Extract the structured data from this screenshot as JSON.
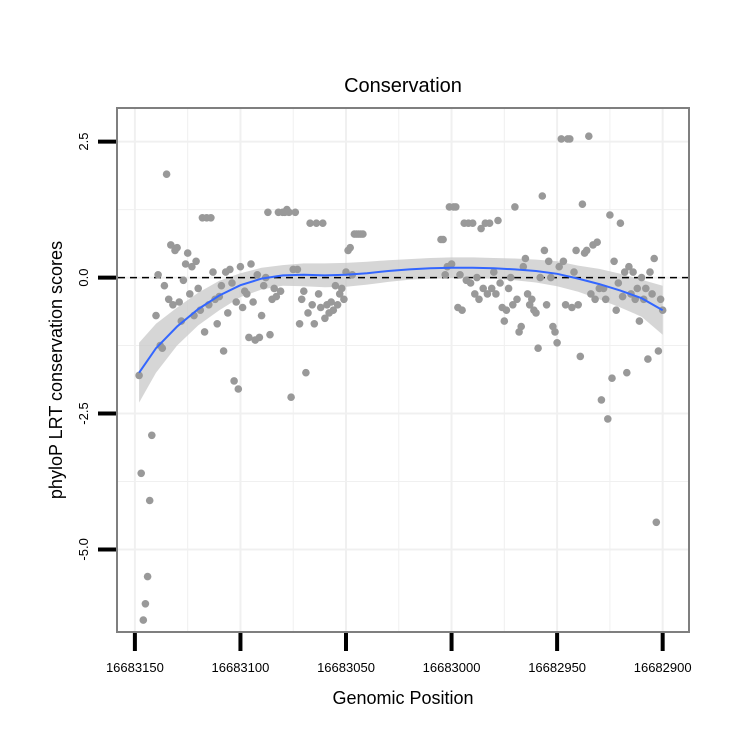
{
  "chart_data": {
    "type": "scatter",
    "title": "Conservation",
    "xlabel": "Genomic Position",
    "ylabel": "phyloP LRT conservation scores",
    "xlim": [
      16683158,
      16682888
    ],
    "ylim": [
      -6.5,
      3.1
    ],
    "x_reversed": true,
    "x_ticks": [
      16683150,
      16683100,
      16683050,
      16683000,
      16682950,
      16682900
    ],
    "x_tick_labels": [
      "16683150",
      "16683100",
      "16683050",
      "16683000",
      "16682950",
      "16682900"
    ],
    "y_ticks": [
      2.5,
      0,
      -2.5,
      -5
    ],
    "y_tick_labels": [
      "2.5",
      "0.0",
      "-2.5",
      "-5.0"
    ],
    "reference_line": {
      "y": 0,
      "style": "dashed"
    },
    "colors": {
      "points": "#999999",
      "smooth": "#3366FF",
      "band": "#C8C8C8",
      "panel_border": "#7F7F7F",
      "grid": "#F0F0F0"
    },
    "points": [
      [
        16683148,
        -1.8
      ],
      [
        16683147,
        -3.6
      ],
      [
        16683146,
        -6.3
      ],
      [
        16683145,
        -6.0
      ],
      [
        16683144,
        -5.5
      ],
      [
        16683143,
        -4.1
      ],
      [
        16683142,
        -2.9
      ],
      [
        16683140,
        -0.7
      ],
      [
        16683139,
        0.05
      ],
      [
        16683138,
        -1.25
      ],
      [
        16683137,
        -1.3
      ],
      [
        16683136,
        -0.15
      ],
      [
        16683135,
        1.9
      ],
      [
        16683134,
        -0.4
      ],
      [
        16683133,
        0.6
      ],
      [
        16683132,
        -0.5
      ],
      [
        16683131,
        0.5
      ],
      [
        16683130,
        0.55
      ],
      [
        16683129,
        -0.45
      ],
      [
        16683128,
        -0.8
      ],
      [
        16683127,
        -0.05
      ],
      [
        16683126,
        0.25
      ],
      [
        16683125,
        0.45
      ],
      [
        16683124,
        -0.3
      ],
      [
        16683123,
        0.2
      ],
      [
        16683122,
        -0.7
      ],
      [
        16683121,
        0.3
      ],
      [
        16683120,
        -0.2
      ],
      [
        16683119,
        -0.6
      ],
      [
        16683118,
        1.1
      ],
      [
        16683117,
        -1.0
      ],
      [
        16683116,
        1.1
      ],
      [
        16683115,
        -0.5
      ],
      [
        16683114,
        1.1
      ],
      [
        16683113,
        0.1
      ],
      [
        16683112,
        -0.4
      ],
      [
        16683111,
        -0.85
      ],
      [
        16683110,
        -0.35
      ],
      [
        16683109,
        -0.15
      ],
      [
        16683108,
        -1.35
      ],
      [
        16683107,
        0.1
      ],
      [
        16683106,
        -0.65
      ],
      [
        16683105,
        0.15
      ],
      [
        16683104,
        -0.1
      ],
      [
        16683103,
        -1.9
      ],
      [
        16683102,
        -0.45
      ],
      [
        16683101,
        -2.05
      ],
      [
        16683100,
        0.2
      ],
      [
        16683099,
        -0.55
      ],
      [
        16683098,
        -0.25
      ],
      [
        16683097,
        -0.3
      ],
      [
        16683096,
        -1.1
      ],
      [
        16683095,
        0.25
      ],
      [
        16683094,
        -0.45
      ],
      [
        16683093,
        -1.15
      ],
      [
        16683092,
        0.05
      ],
      [
        16683091,
        -1.1
      ],
      [
        16683090,
        -0.7
      ],
      [
        16683089,
        -0.15
      ],
      [
        16683088,
        0.0
      ],
      [
        16683087,
        1.2
      ],
      [
        16683086,
        -1.05
      ],
      [
        16683085,
        -0.4
      ],
      [
        16683084,
        -0.2
      ],
      [
        16683083,
        -0.35
      ],
      [
        16683082,
        1.2
      ],
      [
        16683081,
        -0.25
      ],
      [
        16683080,
        1.2
      ],
      [
        16683079,
        1.2
      ],
      [
        16683078,
        1.25
      ],
      [
        16683077,
        1.2
      ],
      [
        16683076,
        -2.2
      ],
      [
        16683075,
        0.15
      ],
      [
        16683074,
        1.2
      ],
      [
        16683073,
        0.15
      ],
      [
        16683072,
        -0.85
      ],
      [
        16683071,
        -0.4
      ],
      [
        16683070,
        -0.25
      ],
      [
        16683069,
        -1.75
      ],
      [
        16683068,
        -0.65
      ],
      [
        16683067,
        1.0
      ],
      [
        16683066,
        -0.5
      ],
      [
        16683065,
        -0.85
      ],
      [
        16683064,
        1.0
      ],
      [
        16683063,
        -0.3
      ],
      [
        16683062,
        -0.55
      ],
      [
        16683061,
        1.0
      ],
      [
        16683060,
        -0.75
      ],
      [
        16683059,
        -0.5
      ],
      [
        16683058,
        -0.65
      ],
      [
        16683057,
        -0.45
      ],
      [
        16683056,
        -0.6
      ],
      [
        16683055,
        -0.15
      ],
      [
        16683054,
        -0.5
      ],
      [
        16683053,
        -0.3
      ],
      [
        16683052,
        -0.2
      ],
      [
        16683051,
        -0.4
      ],
      [
        16683050,
        0.1
      ],
      [
        16683049,
        0.5
      ],
      [
        16683048,
        0.55
      ],
      [
        16683047,
        0.05
      ],
      [
        16683046,
        0.8
      ],
      [
        16683045,
        0.8
      ],
      [
        16683044,
        0.8
      ],
      [
        16683043,
        0.8
      ],
      [
        16683042,
        0.8
      ],
      [
        16683005,
        0.7
      ],
      [
        16683004,
        0.7
      ],
      [
        16683003,
        0.05
      ],
      [
        16683002,
        0.2
      ],
      [
        16683001,
        1.3
      ],
      [
        16683000,
        0.25
      ],
      [
        16682999,
        1.3
      ],
      [
        16682998,
        1.3
      ],
      [
        16682997,
        -0.55
      ],
      [
        16682996,
        0.05
      ],
      [
        16682995,
        -0.6
      ],
      [
        16682994,
        1.0
      ],
      [
        16682993,
        -0.05
      ],
      [
        16682992,
        1.0
      ],
      [
        16682991,
        -0.1
      ],
      [
        16682990,
        1.0
      ],
      [
        16682989,
        -0.3
      ],
      [
        16682988,
        0.0
      ],
      [
        16682987,
        -0.4
      ],
      [
        16682986,
        0.9
      ],
      [
        16682985,
        -0.2
      ],
      [
        16682984,
        1.0
      ],
      [
        16682983,
        -0.3
      ],
      [
        16682982,
        1.0
      ],
      [
        16682981,
        -0.2
      ],
      [
        16682980,
        0.1
      ],
      [
        16682979,
        -0.3
      ],
      [
        16682978,
        1.05
      ],
      [
        16682977,
        -0.1
      ],
      [
        16682976,
        -0.55
      ],
      [
        16682975,
        -0.8
      ],
      [
        16682974,
        -0.6
      ],
      [
        16682973,
        -0.2
      ],
      [
        16682972,
        0.0
      ],
      [
        16682971,
        -0.5
      ],
      [
        16682970,
        1.3
      ],
      [
        16682969,
        -0.4
      ],
      [
        16682968,
        -1.0
      ],
      [
        16682967,
        -0.9
      ],
      [
        16682966,
        0.2
      ],
      [
        16682965,
        0.35
      ],
      [
        16682964,
        -0.3
      ],
      [
        16682963,
        -0.5
      ],
      [
        16682962,
        -0.4
      ],
      [
        16682961,
        -0.6
      ],
      [
        16682960,
        -0.65
      ],
      [
        16682959,
        -1.3
      ],
      [
        16682958,
        0.0
      ],
      [
        16682957,
        1.5
      ],
      [
        16682956,
        0.5
      ],
      [
        16682955,
        -0.5
      ],
      [
        16682954,
        0.3
      ],
      [
        16682953,
        0.0
      ],
      [
        16682952,
        -0.9
      ],
      [
        16682951,
        -1.0
      ],
      [
        16682950,
        -1.2
      ],
      [
        16682949,
        0.2
      ],
      [
        16682948,
        2.55
      ],
      [
        16682947,
        0.3
      ],
      [
        16682946,
        -0.5
      ],
      [
        16682945,
        2.55
      ],
      [
        16682944,
        2.55
      ],
      [
        16682943,
        -0.55
      ],
      [
        16682942,
        0.1
      ],
      [
        16682941,
        0.5
      ],
      [
        16682940,
        -0.5
      ],
      [
        16682939,
        -1.45
      ],
      [
        16682938,
        1.35
      ],
      [
        16682937,
        0.45
      ],
      [
        16682936,
        0.5
      ],
      [
        16682935,
        2.6
      ],
      [
        16682934,
        -0.3
      ],
      [
        16682933,
        0.6
      ],
      [
        16682932,
        -0.4
      ],
      [
        16682931,
        0.65
      ],
      [
        16682930,
        -0.2
      ],
      [
        16682929,
        -2.25
      ],
      [
        16682928,
        -0.2
      ],
      [
        16682927,
        -0.4
      ],
      [
        16682926,
        -2.6
      ],
      [
        16682925,
        1.15
      ],
      [
        16682924,
        -1.85
      ],
      [
        16682923,
        0.3
      ],
      [
        16682922,
        -0.6
      ],
      [
        16682921,
        -0.1
      ],
      [
        16682920,
        1.0
      ],
      [
        16682919,
        -0.35
      ],
      [
        16682918,
        0.1
      ],
      [
        16682917,
        -1.75
      ],
      [
        16682916,
        0.2
      ],
      [
        16682915,
        -0.3
      ],
      [
        16682914,
        0.1
      ],
      [
        16682913,
        -0.4
      ],
      [
        16682912,
        -0.2
      ],
      [
        16682911,
        -0.8
      ],
      [
        16682910,
        0.0
      ],
      [
        16682909,
        -0.4
      ],
      [
        16682908,
        -0.2
      ],
      [
        16682907,
        -1.5
      ],
      [
        16682906,
        0.1
      ],
      [
        16682905,
        -0.3
      ],
      [
        16682904,
        0.35
      ],
      [
        16682903,
        -4.5
      ],
      [
        16682902,
        -1.35
      ],
      [
        16682901,
        -0.4
      ],
      [
        16682900,
        -0.6
      ]
    ],
    "smooth": {
      "x": [
        16683148,
        16683140,
        16683130,
        16683120,
        16683110,
        16683100,
        16683090,
        16683080,
        16683070,
        16683060,
        16683050,
        16683040,
        16683030,
        16683020,
        16683010,
        16683000,
        16682990,
        16682980,
        16682970,
        16682960,
        16682950,
        16682940,
        16682930,
        16682920,
        16682910,
        16682900
      ],
      "y": [
        -1.75,
        -1.3,
        -0.9,
        -0.58,
        -0.33,
        -0.14,
        -0.02,
        0.04,
        0.05,
        0.04,
        0.05,
        0.08,
        0.12,
        0.15,
        0.17,
        0.18,
        0.18,
        0.17,
        0.15,
        0.12,
        0.07,
        -0.02,
        -0.12,
        -0.24,
        -0.38,
        -0.6
      ],
      "lower": [
        -2.3,
        -1.75,
        -1.25,
        -0.88,
        -0.6,
        -0.36,
        -0.22,
        -0.15,
        -0.16,
        -0.18,
        -0.17,
        -0.13,
        -0.08,
        -0.04,
        -0.02,
        -0.01,
        -0.01,
        -0.02,
        -0.05,
        -0.09,
        -0.16,
        -0.26,
        -0.4,
        -0.55,
        -0.72,
        -1.05
      ],
      "upper": [
        -1.2,
        -0.85,
        -0.55,
        -0.28,
        -0.06,
        0.08,
        0.18,
        0.23,
        0.26,
        0.26,
        0.27,
        0.29,
        0.32,
        0.34,
        0.36,
        0.37,
        0.37,
        0.36,
        0.35,
        0.33,
        0.3,
        0.22,
        0.16,
        0.07,
        -0.04,
        -0.15
      ]
    }
  }
}
